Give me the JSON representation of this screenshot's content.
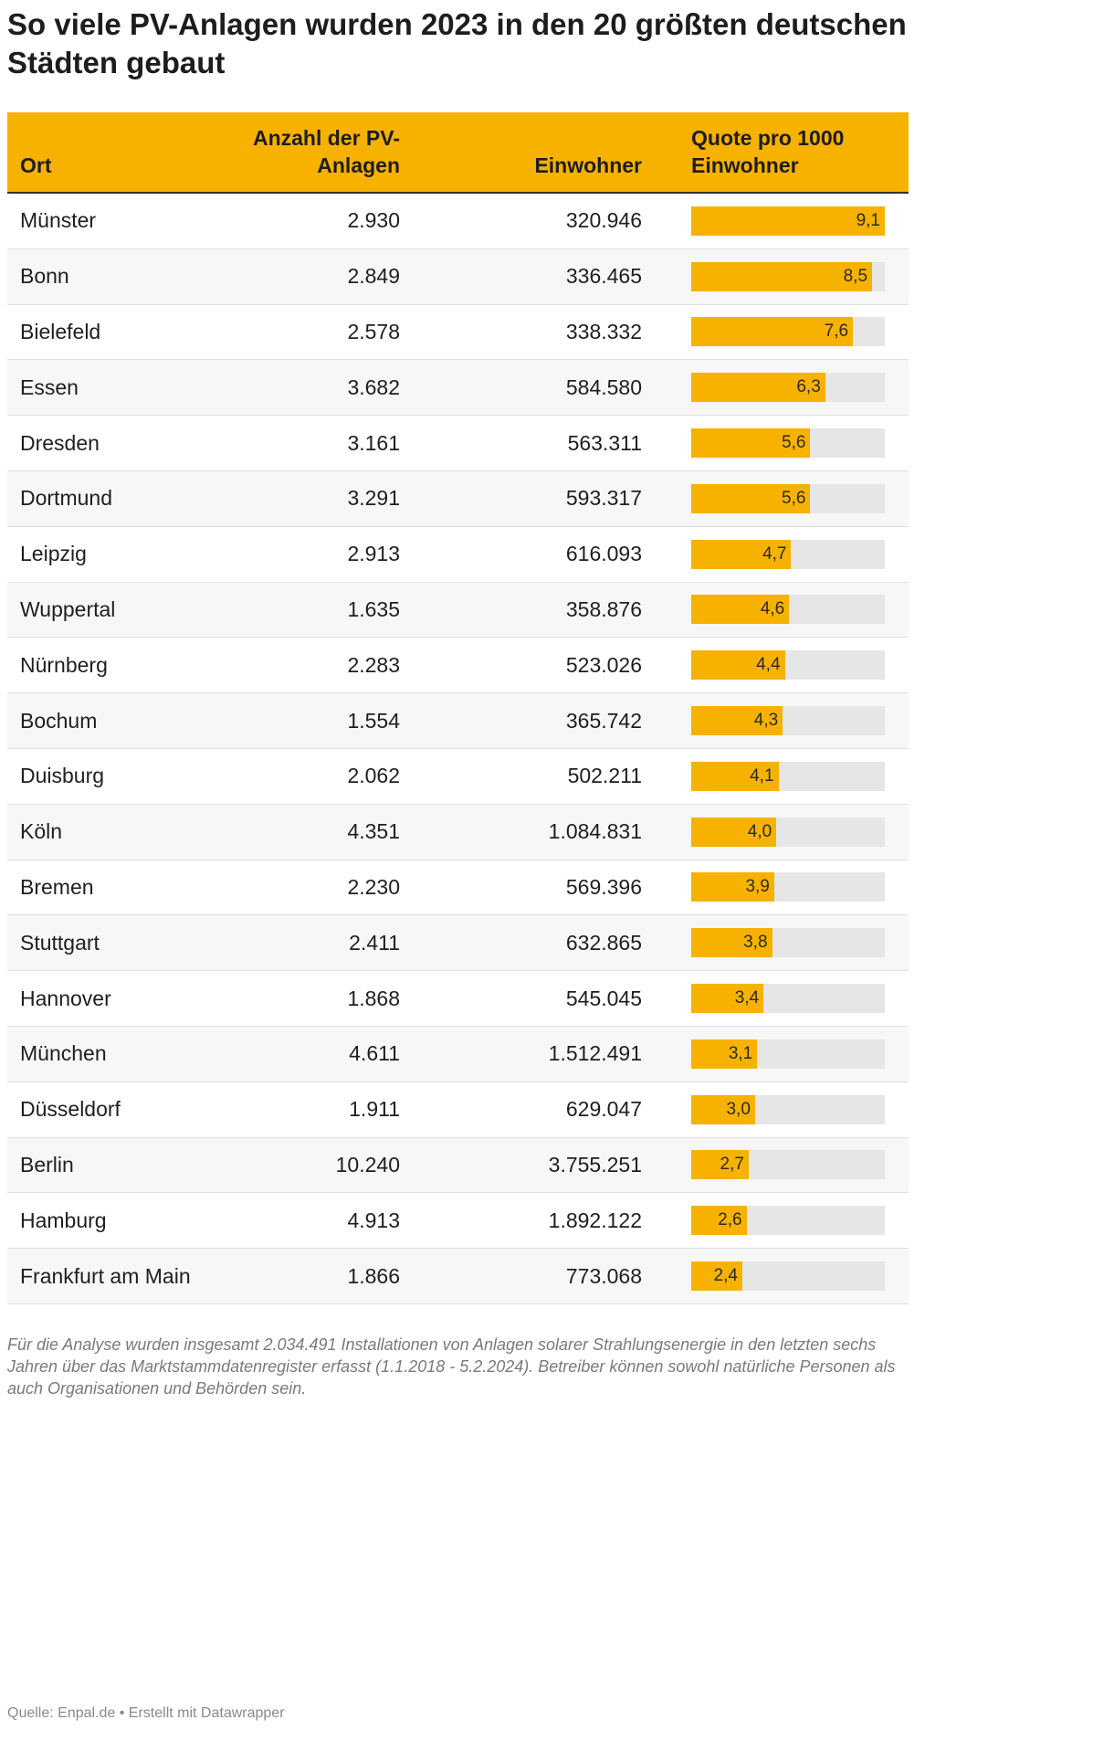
{
  "colors": {
    "accent": "#f7b200",
    "track": "#e6e6e6",
    "row_alt": "#f7f7f7",
    "text": "#1f1f1f",
    "muted": "#7a7a7a"
  },
  "chart_data": {
    "type": "table",
    "title": "So viele PV-Anlagen wurden 2023 in den 20 größten deutschen Städten gebaut",
    "columns": {
      "ort": "Ort",
      "anzahl": "Anzahl der PV-Anlagen",
      "einwohner": "Einwohner",
      "quote": "Quote pro 1000 Einwohner"
    },
    "quote_range": [
      0,
      9.1
    ],
    "rows": [
      {
        "ort": "Münster",
        "anzahl": "2.930",
        "einwohner": "320.946",
        "quote": "9,1"
      },
      {
        "ort": "Bonn",
        "anzahl": "2.849",
        "einwohner": "336.465",
        "quote": "8,5"
      },
      {
        "ort": "Bielefeld",
        "anzahl": "2.578",
        "einwohner": "338.332",
        "quote": "7,6"
      },
      {
        "ort": "Essen",
        "anzahl": "3.682",
        "einwohner": "584.580",
        "quote": "6,3"
      },
      {
        "ort": "Dresden",
        "anzahl": "3.161",
        "einwohner": "563.311",
        "quote": "5,6"
      },
      {
        "ort": "Dortmund",
        "anzahl": "3.291",
        "einwohner": "593.317",
        "quote": "5,6"
      },
      {
        "ort": "Leipzig",
        "anzahl": "2.913",
        "einwohner": "616.093",
        "quote": "4,7"
      },
      {
        "ort": "Wuppertal",
        "anzahl": "1.635",
        "einwohner": "358.876",
        "quote": "4,6"
      },
      {
        "ort": "Nürnberg",
        "anzahl": "2.283",
        "einwohner": "523.026",
        "quote": "4,4"
      },
      {
        "ort": "Bochum",
        "anzahl": "1.554",
        "einwohner": "365.742",
        "quote": "4,3"
      },
      {
        "ort": "Duisburg",
        "anzahl": "2.062",
        "einwohner": "502.211",
        "quote": "4,1"
      },
      {
        "ort": "Köln",
        "anzahl": "4.351",
        "einwohner": "1.084.831",
        "quote": "4,0"
      },
      {
        "ort": "Bremen",
        "anzahl": "2.230",
        "einwohner": "569.396",
        "quote": "3,9"
      },
      {
        "ort": "Stuttgart",
        "anzahl": "2.411",
        "einwohner": "632.865",
        "quote": "3,8"
      },
      {
        "ort": "Hannover",
        "anzahl": "1.868",
        "einwohner": "545.045",
        "quote": "3,4"
      },
      {
        "ort": "München",
        "anzahl": "4.611",
        "einwohner": "1.512.491",
        "quote": "3,1"
      },
      {
        "ort": "Düsseldorf",
        "anzahl": "1.911",
        "einwohner": "629.047",
        "quote": "3,0"
      },
      {
        "ort": "Berlin",
        "anzahl": "10.240",
        "einwohner": "3.755.251",
        "quote": "2,7"
      },
      {
        "ort": "Hamburg",
        "anzahl": "4.913",
        "einwohner": "1.892.122",
        "quote": "2,6"
      },
      {
        "ort": "Frankfurt am Main",
        "anzahl": "1.866",
        "einwohner": "773.068",
        "quote": "2,4"
      }
    ]
  },
  "footnote": "Für die Analyse wurden insgesamt 2.034.491 Installationen von Anlagen solarer Strahlungsenergie in den letzten sechs Jahren über das Marktstammdatenregister erfasst (1.1.2018 - 5.2.2024). Betreiber können sowohl natürliche Personen als auch Organisationen und Behörden sein.",
  "source": "Quelle: Enpal.de • Erstellt mit Datawrapper"
}
